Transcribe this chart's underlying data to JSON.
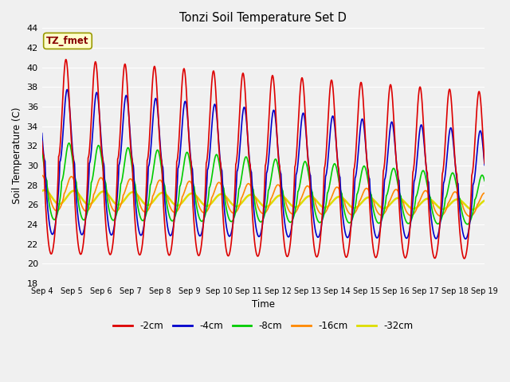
{
  "title": "Tonzi Soil Temperature Set D",
  "xlabel": "Time",
  "ylabel": "Soil Temperature (C)",
  "annotation_text": "TZ_fmet",
  "annotation_bg": "#ffffcc",
  "annotation_border": "#999900",
  "annotation_textcolor": "#880000",
  "ylim": [
    18,
    44
  ],
  "yticks": [
    18,
    20,
    22,
    24,
    26,
    28,
    30,
    32,
    34,
    36,
    38,
    40,
    42,
    44
  ],
  "x_labels": [
    "Sep 4",
    "Sep 5",
    "Sep 6",
    "Sep 7",
    "Sep 8",
    "Sep 9",
    "Sep 10",
    "Sep 11",
    "Sep 12",
    "Sep 13",
    "Sep 14",
    "Sep 15",
    "Sep 16",
    "Sep 17",
    "Sep 18",
    "Sep 19"
  ],
  "bg_color": "#f0f0f0",
  "grid_color": "#d8d8d8",
  "series": {
    "-2cm": {
      "color": "#dd0000",
      "linewidth": 1.2
    },
    "-4cm": {
      "color": "#0000cc",
      "linewidth": 1.2
    },
    "-8cm": {
      "color": "#00cc00",
      "linewidth": 1.2
    },
    "-16cm": {
      "color": "#ff8800",
      "linewidth": 1.2
    },
    "-32cm": {
      "color": "#dddd00",
      "linewidth": 1.8
    }
  },
  "legend_labels": [
    "-2cm",
    "-4cm",
    "-8cm",
    "-16cm",
    "-32cm"
  ],
  "legend_colors": [
    "#dd0000",
    "#0000cc",
    "#00cc00",
    "#ff8800",
    "#dddd00"
  ],
  "num_days": 15,
  "points_per_day": 96
}
